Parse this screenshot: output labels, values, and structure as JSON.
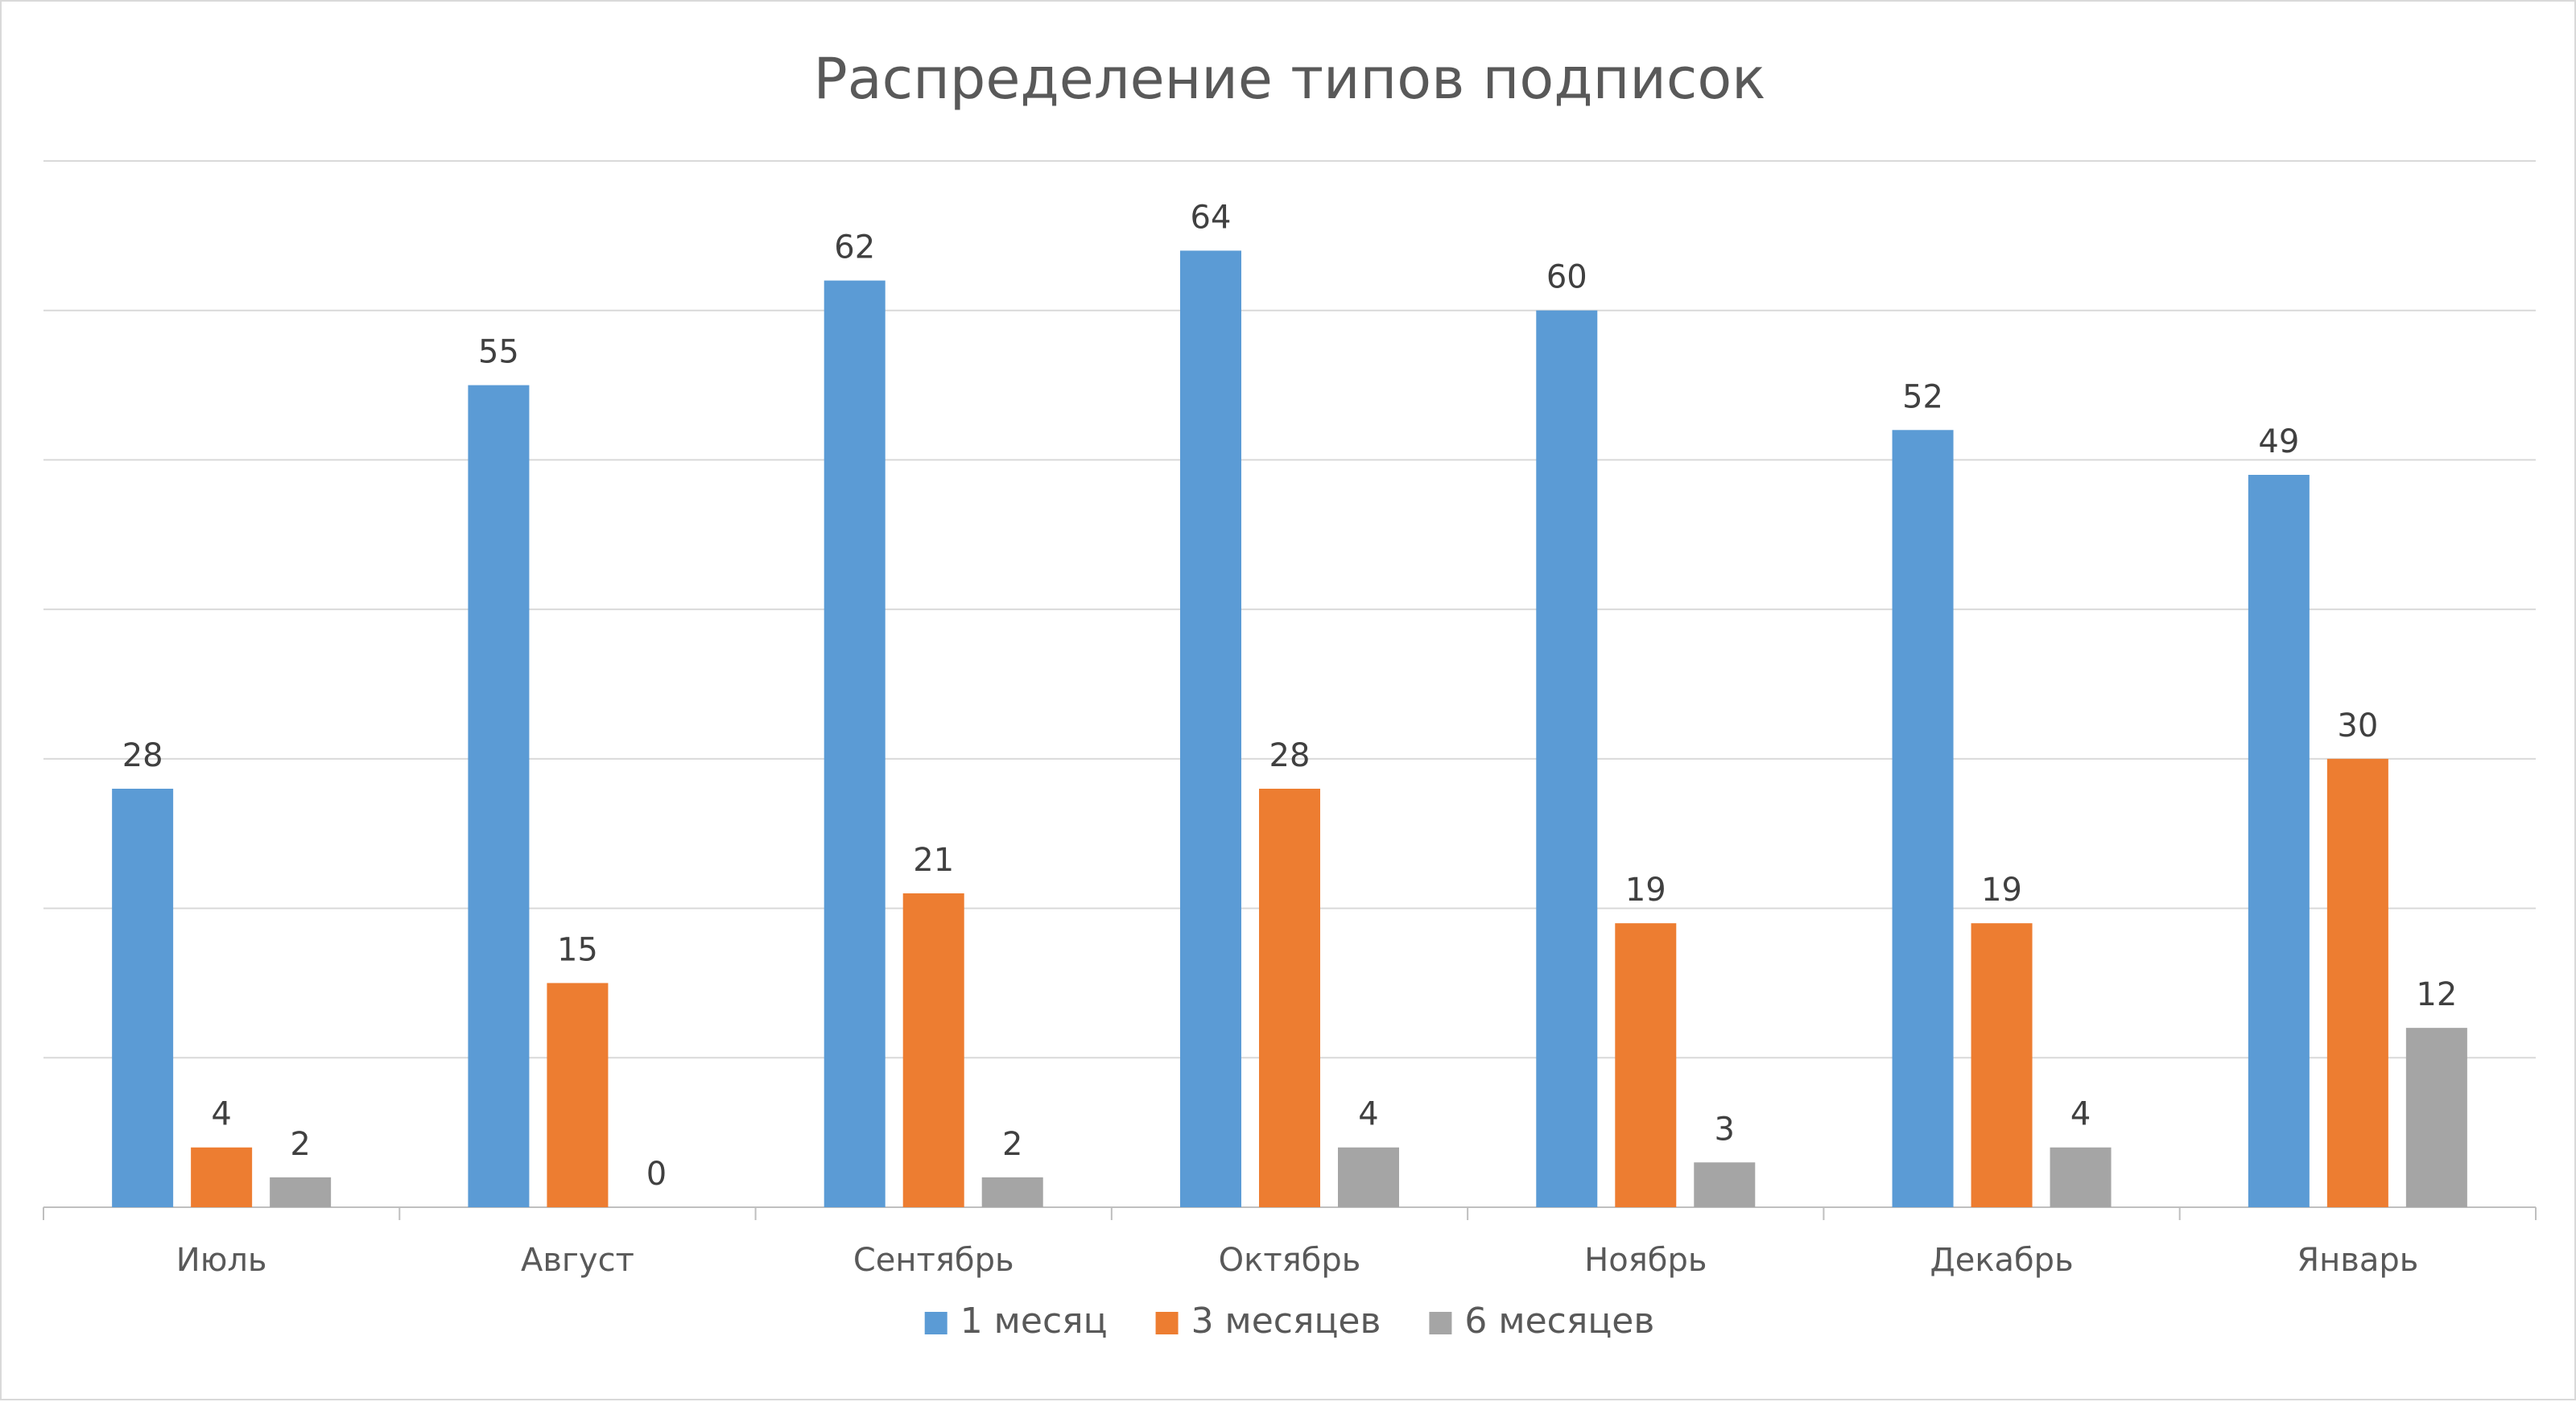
{
  "chart_data": {
    "type": "bar",
    "title": "Распределение типов подписок",
    "xlabel": "",
    "ylabel": "",
    "ylim": [
      0,
      70
    ],
    "y_gridline_step": 10,
    "y_tick_labels_shown": false,
    "grid": true,
    "legend_position": "bottom",
    "categories": [
      "Июль",
      "Август",
      "Сентябрь",
      "Октябрь",
      "Ноябрь",
      "Декабрь",
      "Январь"
    ],
    "series": [
      {
        "name": "1 месяц",
        "color": "#5B9BD5",
        "values": [
          28,
          55,
          62,
          64,
          60,
          52,
          49
        ]
      },
      {
        "name": "3 месяцев",
        "color": "#ED7D31",
        "values": [
          4,
          15,
          21,
          28,
          19,
          19,
          30
        ]
      },
      {
        "name": "6 месяцев",
        "color": "#A5A5A5",
        "values": [
          2,
          0,
          2,
          4,
          3,
          4,
          12
        ]
      }
    ],
    "data_labels_shown": true
  },
  "colors": {
    "gridline": "#D9D9D9",
    "axis": "#BFBFBF",
    "text": "#595959",
    "data_label_text": "#404040"
  }
}
